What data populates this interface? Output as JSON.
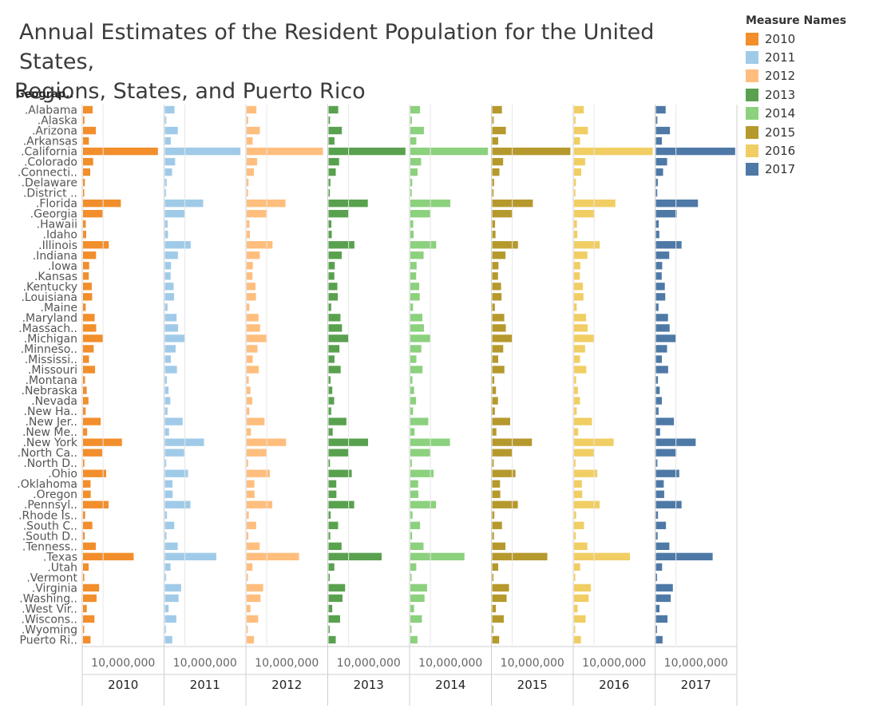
{
  "title_line1": "Annual Estimates of the Resident Population for the United States,",
  "title_line2": "Regions, States, and Puerto Rico",
  "row_header": "Geograp..",
  "legend": {
    "title": "Measure Names",
    "items": [
      {
        "label": "2010",
        "color": "#f28e2b"
      },
      {
        "label": "2011",
        "color": "#a0cbe8"
      },
      {
        "label": "2012",
        "color": "#ffbe7d"
      },
      {
        "label": "2013",
        "color": "#59a14f"
      },
      {
        "label": "2014",
        "color": "#8cd17d"
      },
      {
        "label": "2015",
        "color": "#b6992d"
      },
      {
        "label": "2016",
        "color": "#f1ce63"
      },
      {
        "label": "2017",
        "color": "#4e79a7"
      }
    ]
  },
  "chart_data": {
    "type": "bar",
    "orientation": "horizontal",
    "axis_tick_label": "10,000,000",
    "xlim": [
      0,
      40000000
    ],
    "categories": [
      ".Alabama",
      ".Alaska",
      ".Arizona",
      ".Arkansas",
      ".California",
      ".Colorado",
      ".Connecti..",
      ".Delaware",
      ".District ..",
      ".Florida",
      ".Georgia",
      ".Hawaii",
      ".Idaho",
      ".Illinois",
      ".Indiana",
      ".Iowa",
      ".Kansas",
      ".Kentucky",
      ".Louisiana",
      ".Maine",
      ".Maryland",
      ".Massach..",
      ".Michigan",
      ".Minneso..",
      ".Mississi..",
      ".Missouri",
      ".Montana",
      ".Nebraska",
      ".Nevada",
      ".New Ha..",
      ".New Jer..",
      ".New Me..",
      ".New York",
      ".North Ca..",
      ".North D..",
      ".Ohio",
      ".Oklahoma",
      ".Oregon",
      ".Pennsyl..",
      ".Rhode Is..",
      ".South C..",
      ".South D..",
      ".Tenness..",
      ".Texas",
      ".Utah",
      ".Vermont",
      ".Virginia",
      ".Washing..",
      ".West Vir..",
      ".Wiscons..",
      ".Wyoming",
      "Puerto Ri.."
    ],
    "series": [
      {
        "name": "2010",
        "values": [
          4785000,
          714000,
          6408000,
          2922000,
          37336000,
          5048000,
          3580000,
          900000,
          605000,
          18850000,
          9712000,
          1364000,
          1571000,
          12840000,
          6490000,
          3050000,
          2859000,
          4348000,
          4545000,
          1327000,
          5788000,
          6566000,
          9877000,
          5310000,
          2970000,
          5996000,
          990000,
          1830000,
          2703000,
          1316000,
          8803000,
          2065000,
          19400000,
          9574000,
          674000,
          11539000,
          3760000,
          3838000,
          12712000,
          1053000,
          4636000,
          816000,
          6356000,
          25245000,
          2776000,
          626000,
          8024000,
          6742000,
          1853000,
          5690000,
          564000,
          3722000
        ]
      },
      {
        "name": "2011",
        "values": [
          4799000,
          722000,
          6473000,
          2940000,
          37676000,
          5120000,
          3590000,
          908000,
          620000,
          19094000,
          9813000,
          1379000,
          1583000,
          12860000,
          6517000,
          3065000,
          2870000,
          4370000,
          4577000,
          1328000,
          5841000,
          6613000,
          9877000,
          5347000,
          2978000,
          6010000,
          997000,
          1842000,
          2718000,
          1318000,
          8843000,
          2078000,
          19520000,
          9657000,
          685000,
          11545000,
          3786000,
          3872000,
          12744000,
          1052000,
          4672000,
          824000,
          6401000,
          25650000,
          2815000,
          626000,
          8102000,
          6822000,
          1855000,
          5705000,
          568000,
          3680000
        ]
      },
      {
        "name": "2012",
        "values": [
          4816000,
          730000,
          6556000,
          2952000,
          38011000,
          5192000,
          3594000,
          917000,
          635000,
          19342000,
          9919000,
          1393000,
          1595000,
          12883000,
          6538000,
          3075000,
          2886000,
          4385000,
          4602000,
          1328000,
          5885000,
          6660000,
          9883000,
          5380000,
          2985000,
          6024000,
          1005000,
          1855000,
          2755000,
          1320000,
          8876000,
          2085000,
          19626000,
          9752000,
          702000,
          11551000,
          3818000,
          3900000,
          12764000,
          1052000,
          4723000,
          834000,
          6456000,
          26094000,
          2855000,
          626000,
          8185000,
          6896000,
          1856000,
          5720000,
          577000,
          3634000
        ]
      },
      {
        "name": "2013",
        "values": [
          4830000,
          737000,
          6635000,
          2960000,
          38335000,
          5268000,
          3598000,
          925000,
          650000,
          19584000,
          9992000,
          1408000,
          1612000,
          12895000,
          6570000,
          3093000,
          2894000,
          4400000,
          4627000,
          1328000,
          5929000,
          6713000,
          9898000,
          5419000,
          2991000,
          6040000,
          1015000,
          1868000,
          2790000,
          1323000,
          8907000,
          2087000,
          19718000,
          9848000,
          723000,
          11570000,
          3854000,
          3928000,
          12781000,
          1053000,
          4774000,
          844000,
          6497000,
          26480000,
          2901000,
          626000,
          8264000,
          6973000,
          1854000,
          5743000,
          583000,
          3594000
        ]
      },
      {
        "name": "2014",
        "values": [
          4842000,
          737000,
          6733000,
          2966000,
          38680000,
          5350000,
          3595000,
          935000,
          660000,
          19906000,
          10090000,
          1419000,
          1634000,
          12881000,
          6597000,
          3108000,
          2900000,
          4413000,
          4650000,
          1330000,
          5967000,
          6758000,
          9915000,
          5453000,
          2990000,
          6057000,
          1024000,
          1881000,
          2834000,
          1328000,
          8938000,
          2090000,
          19747000,
          9944000,
          738000,
          11594000,
          3879000,
          3971000,
          12791000,
          1055000,
          4832000,
          853000,
          6549000,
          26957000,
          2943000,
          626000,
          8327000,
          7062000,
          1850000,
          5758000,
          584000,
          3535000
        ]
      },
      {
        "name": "2015",
        "values": [
          4853000,
          737000,
          6818000,
          2978000,
          38993000,
          5448000,
          3590000,
          944000,
          671000,
          20271000,
          10214000,
          1426000,
          1651000,
          12860000,
          6620000,
          3120000,
          2910000,
          4425000,
          4670000,
          1330000,
          6006000,
          6794000,
          9923000,
          5490000,
          2992000,
          6071000,
          1033000,
          1896000,
          2883000,
          1331000,
          8958000,
          2085000,
          19796000,
          10042000,
          757000,
          11607000,
          3907000,
          4024000,
          12785000,
          1056000,
          4892000,
          858000,
          6600000,
          27470000,
          2996000,
          626000,
          8383000,
          7170000,
          1844000,
          5767000,
          586000,
          3474000
        ]
      },
      {
        "name": "2016",
        "values": [
          4864000,
          741000,
          6911000,
          2988000,
          39250000,
          5540000,
          3588000,
          952000,
          681000,
          20613000,
          10310000,
          1428000,
          1683000,
          12820000,
          6634000,
          3134000,
          2907000,
          4437000,
          4682000,
          1331000,
          6016000,
          6812000,
          9928000,
          5520000,
          2989000,
          6091000,
          1038000,
          1907000,
          2940000,
          1335000,
          8945000,
          2085000,
          19745000,
          10146000,
          755000,
          11614000,
          3924000,
          4093000,
          12784000,
          1057000,
          4961000,
          865000,
          6651000,
          27863000,
          3051000,
          624000,
          8412000,
          7288000,
          1831000,
          5779000,
          585000,
          3411000
        ]
      },
      {
        "name": "2017",
        "values": [
          4874000,
          739000,
          7016000,
          3004000,
          39537000,
          5608000,
          3588000,
          962000,
          694000,
          20984000,
          10429000,
          1428000,
          1717000,
          12802000,
          6667000,
          3146000,
          2913000,
          4454000,
          4684000,
          1335000,
          6052000,
          6860000,
          9962000,
          5577000,
          2984000,
          6114000,
          1050000,
          1920000,
          2998000,
          1343000,
          9006000,
          2088000,
          19849000,
          10273000,
          755000,
          11659000,
          3930000,
          4143000,
          12806000,
          1060000,
          5025000,
          870000,
          6716000,
          28305000,
          3101000,
          624000,
          8471000,
          7406000,
          1816000,
          5796000,
          579000,
          3338000
        ]
      }
    ]
  }
}
